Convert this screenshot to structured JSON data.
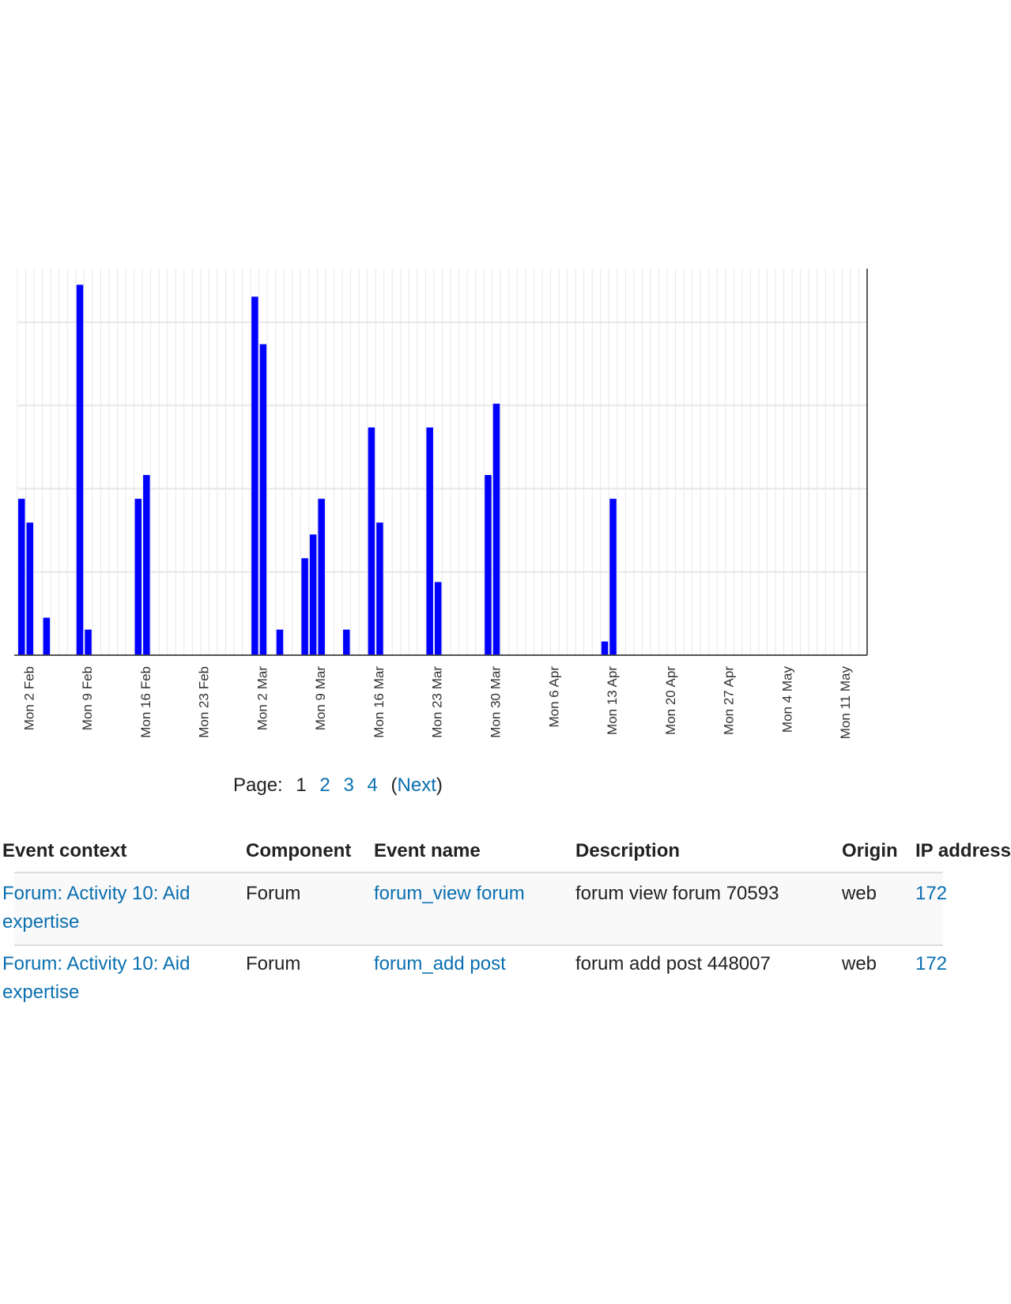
{
  "chart_data": {
    "type": "bar",
    "color": "#0000ff",
    "grid": true,
    "categories": [
      null,
      "Mon 2 Feb",
      null,
      null,
      null,
      null,
      null,
      null,
      "Mon 9 Feb",
      null,
      null,
      null,
      null,
      null,
      null,
      "Mon 16 Feb",
      null,
      null,
      null,
      null,
      null,
      null,
      "Mon 23 Feb",
      null,
      null,
      null,
      null,
      null,
      null,
      "Mon 2 Mar",
      null,
      null,
      null,
      null,
      null,
      null,
      "Mon 9 Mar",
      null,
      null,
      null,
      null,
      null,
      null,
      "Mon 16 Mar",
      null,
      null,
      null,
      null,
      null,
      null,
      "Mon 23 Mar",
      null,
      null,
      null,
      null,
      null,
      null,
      "Mon 30 Mar",
      null,
      null,
      null,
      null,
      null,
      null,
      "Mon 6 Apr",
      null,
      null,
      null,
      null,
      null,
      null,
      "Mon 13 Apr",
      null,
      null,
      null,
      null,
      null,
      null,
      "Mon 20 Apr",
      null,
      null,
      null,
      null,
      null,
      null,
      "Mon 27 Apr",
      null,
      null,
      null,
      null,
      null,
      null,
      "Mon 4 May",
      null,
      null,
      null,
      null,
      null,
      null,
      "Mon 11 May",
      null,
      null
    ],
    "values": [
      13,
      11,
      0,
      3,
      0,
      0,
      0,
      31,
      2,
      0,
      0,
      0,
      0,
      0,
      13,
      15,
      0,
      0,
      0,
      0,
      0,
      0,
      0,
      0,
      0,
      0,
      0,
      0,
      30,
      26,
      0,
      2,
      0,
      0,
      8,
      10,
      13,
      0,
      0,
      2,
      0,
      0,
      19,
      11,
      0,
      0,
      0,
      0,
      0,
      19,
      6,
      0,
      0,
      0,
      0,
      0,
      15,
      21,
      0,
      0,
      0,
      0,
      0,
      0,
      0,
      0,
      0,
      0,
      0,
      0,
      1,
      13,
      0,
      0,
      0,
      0,
      0,
      0,
      0,
      0,
      0,
      0,
      0,
      0,
      0,
      0,
      0,
      0,
      0,
      0,
      0,
      0,
      0,
      0,
      0,
      0,
      0,
      0,
      0,
      0,
      0,
      0
    ],
    "ylim": [
      0,
      32.5
    ],
    "yticks": [
      0,
      7,
      14,
      21,
      28
    ]
  },
  "pagination": {
    "label": "Page:",
    "current": "1",
    "pages": [
      "2",
      "3",
      "4"
    ],
    "open": "(",
    "next": "Next",
    "close": ")"
  },
  "table": {
    "headers": [
      "Event context",
      "Component",
      "Event name",
      "Description",
      "Origin",
      "IP address"
    ],
    "rows": [
      [
        "Forum: Activity 10: Aid expertise",
        "Forum",
        "forum_view forum",
        "forum view forum 70593",
        "web",
        "172"
      ],
      [
        "Forum: Activity 10: Aid expertise",
        "Forum",
        "forum_add post",
        "forum add post 448007",
        "web",
        "172"
      ]
    ]
  }
}
